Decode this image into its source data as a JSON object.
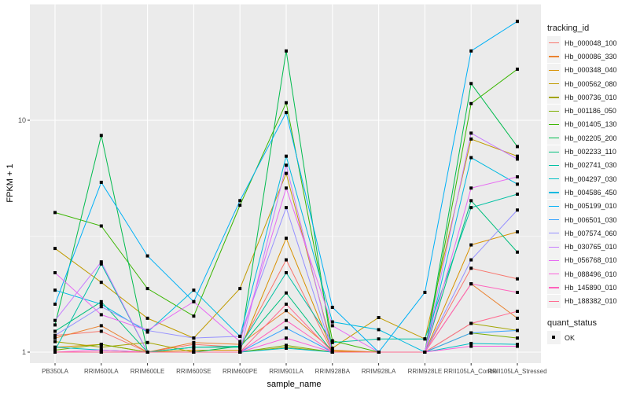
{
  "chart_data": {
    "type": "line",
    "xlabel": "sample_name",
    "ylabel": "FPKM + 1",
    "yscale": "log10",
    "ylim": [
      0.9,
      31.6
    ],
    "yticks": [
      1,
      10
    ],
    "ytick_labels": [
      "1",
      "10"
    ],
    "grid": true,
    "legend_position": "right",
    "categories": [
      "PB350LA",
      "RRIM600LA",
      "RRIM600LE",
      "RRIM600SE",
      "RRIM600PE",
      "RRIM901LA",
      "RRIM928BA",
      "RRIM928LA",
      "RRIM928LE",
      "RRII105LA_Control",
      "RRII105LA_Stressed"
    ],
    "legend_title": "tracking_id",
    "shape_legend_title": "quant_status",
    "shape_legend_items": [
      "OK"
    ],
    "series": [
      {
        "name": "Hb_000048_100",
        "color": "#F8766D",
        "values": [
          1.18,
          1.23,
          1.0,
          1.08,
          1.05,
          2.5,
          1.0,
          1.0,
          1.0,
          2.3,
          2.07
        ]
      },
      {
        "name": "Hb_000086_330",
        "color": "#EA8331",
        "values": [
          1.15,
          1.3,
          1.0,
          1.1,
          1.08,
          1.51,
          1.02,
          1.0,
          1.0,
          1.97,
          1.4
        ]
      },
      {
        "name": "Hb_000348_040",
        "color": "#D89000",
        "values": [
          1.05,
          1.08,
          1.0,
          1.02,
          1.02,
          3.1,
          1.01,
          1.0,
          1.0,
          2.9,
          3.3
        ]
      },
      {
        "name": "Hb_000562_080",
        "color": "#C09B00",
        "values": [
          2.8,
          2.0,
          1.4,
          1.15,
          1.88,
          5.9,
          1.04,
          1.41,
          1.14,
          8.3,
          7.0
        ]
      },
      {
        "name": "Hb_000736_010",
        "color": "#A3A500",
        "values": [
          1.11,
          1.05,
          1.1,
          1.0,
          1.0,
          1.05,
          1.0,
          1.0,
          1.0,
          1.33,
          1.24
        ]
      },
      {
        "name": "Hb_001186_050",
        "color": "#7CAE00",
        "values": [
          1.02,
          1.08,
          1.0,
          1.0,
          1.0,
          1.07,
          1.0,
          1.0,
          1.0,
          1.21,
          1.15
        ]
      },
      {
        "name": "Hb_001405_130",
        "color": "#39B600",
        "values": [
          4.0,
          3.5,
          1.88,
          1.43,
          4.3,
          11.9,
          1.12,
          1.0,
          1.0,
          11.8,
          16.6
        ]
      },
      {
        "name": "Hb_002205_200",
        "color": "#00BB4E",
        "values": [
          1.31,
          8.6,
          1.0,
          1.0,
          1.06,
          19.9,
          1.0,
          1.0,
          1.0,
          14.4,
          7.7
        ]
      },
      {
        "name": "Hb_002233_110",
        "color": "#00BF7D",
        "values": [
          1.23,
          1.65,
          1.0,
          1.05,
          1.05,
          1.8,
          1.0,
          1.0,
          1.0,
          4.5,
          2.7
        ]
      },
      {
        "name": "Hb_002741_030",
        "color": "#00C1A3",
        "values": [
          1.02,
          2.4,
          1.0,
          1.05,
          1.06,
          2.2,
          1.1,
          1.14,
          1.14,
          4.2,
          4.8
        ]
      },
      {
        "name": "Hb_004297_030",
        "color": "#00BFC4",
        "values": [
          1.05,
          1.02,
          1.0,
          1.0,
          1.0,
          1.04,
          1.0,
          1.0,
          1.0,
          1.09,
          1.08
        ]
      },
      {
        "name": "Hb_004586_450",
        "color": "#00BAE0",
        "values": [
          1.85,
          1.61,
          1.22,
          1.85,
          1.17,
          7.0,
          1.35,
          1.25,
          1.0,
          6.9,
          5.3
        ]
      },
      {
        "name": "Hb_005199_010",
        "color": "#00B0F6",
        "values": [
          1.61,
          5.4,
          2.6,
          1.65,
          4.5,
          10.8,
          1.56,
          1.0,
          1.81,
          19.9,
          26.7
        ]
      },
      {
        "name": "Hb_006501_030",
        "color": "#35A2FF",
        "values": [
          1.0,
          1.0,
          1.0,
          1.0,
          1.0,
          1.27,
          1.0,
          1.0,
          1.0,
          1.21,
          1.24
        ]
      },
      {
        "name": "Hb_007574_060",
        "color": "#9590FF",
        "values": [
          1.18,
          1.57,
          1.24,
          1.15,
          1.17,
          4.2,
          1.0,
          1.0,
          1.0,
          2.5,
          4.1
        ]
      },
      {
        "name": "Hb_030765_010",
        "color": "#C77CFF",
        "values": [
          1.37,
          2.45,
          1.0,
          1.0,
          1.0,
          6.4,
          1.0,
          1.0,
          1.0,
          8.8,
          6.8
        ]
      },
      {
        "name": "Hb_056768_010",
        "color": "#E76BF3",
        "values": [
          2.2,
          1.45,
          1.24,
          1.65,
          1.11,
          5.1,
          1.3,
          1.0,
          1.0,
          5.1,
          5.7
        ]
      },
      {
        "name": "Hb_088496_010",
        "color": "#FA62DB",
        "values": [
          1.0,
          1.02,
          1.0,
          1.0,
          1.0,
          1.15,
          1.0,
          1.0,
          1.0,
          1.06,
          1.06
        ]
      },
      {
        "name": "Hb_145890_010",
        "color": "#FF62BC",
        "values": [
          1.0,
          1.0,
          1.0,
          1.0,
          1.0,
          1.37,
          1.0,
          1.0,
          1.0,
          1.97,
          1.81
        ]
      },
      {
        "name": "Hb_188382_010",
        "color": "#FF6C91",
        "values": [
          1.0,
          1.0,
          1.0,
          1.0,
          1.0,
          1.61,
          1.0,
          1.0,
          1.0,
          1.33,
          1.5
        ]
      }
    ]
  }
}
